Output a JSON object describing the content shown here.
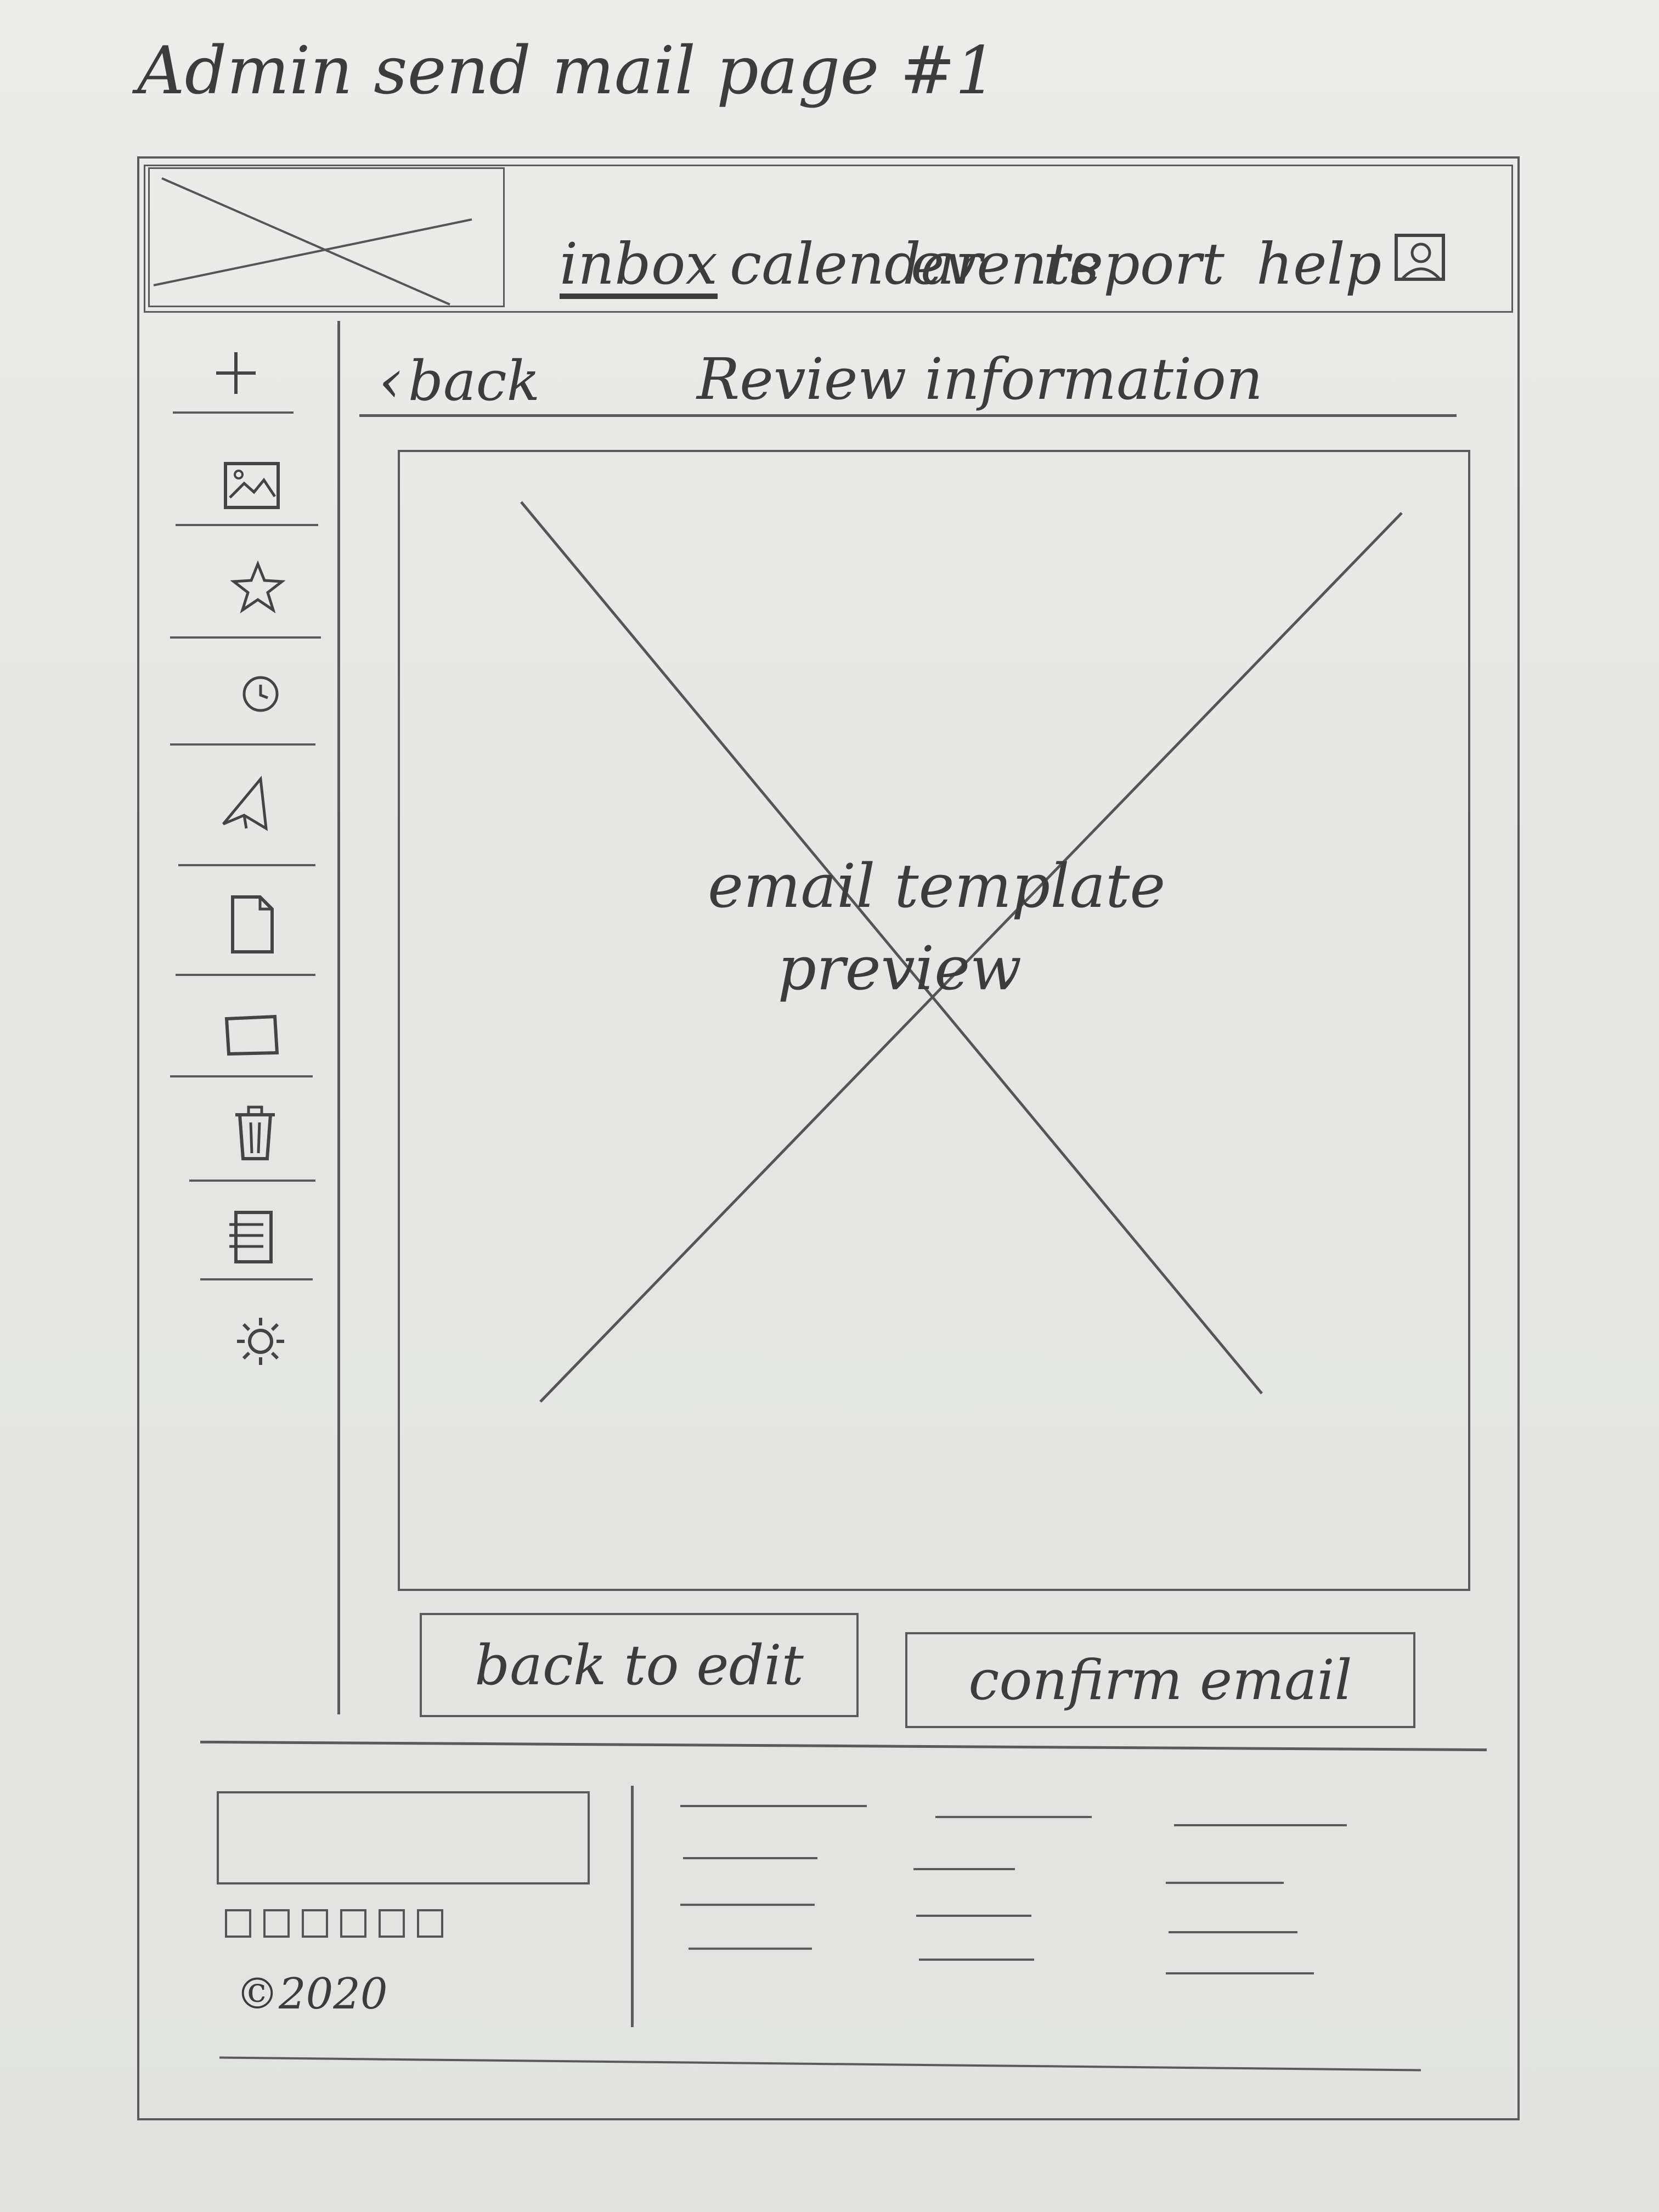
{
  "page_title": "Admin send mail page #1",
  "header": {
    "logo": "image-placeholder",
    "nav": [
      "inbox",
      "calendar",
      "events",
      "report"
    ],
    "help_label": "help",
    "profile_icon": "user-profile-icon"
  },
  "sidebar": {
    "icons": [
      "plus-icon",
      "image-icon",
      "star-icon",
      "clock-icon",
      "send-icon",
      "document-icon",
      "folder-icon",
      "trash-icon",
      "notes-icon",
      "settings-icon"
    ]
  },
  "content": {
    "back_label": "back",
    "section_title": "Review information",
    "preview_label_line1": "email template",
    "preview_label_line2": "preview",
    "back_to_edit_label": "back to edit",
    "confirm_label": "confirm email"
  },
  "footer": {
    "social_icon_count": 6,
    "copyright": "©2020"
  }
}
